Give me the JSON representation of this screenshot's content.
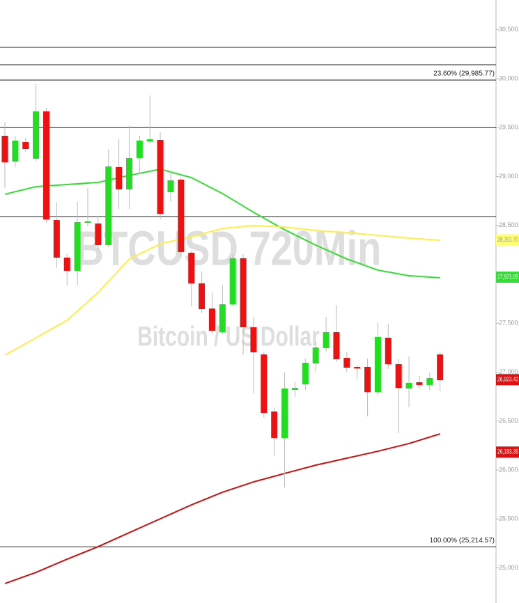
{
  "chart_data": {
    "type": "candlestick",
    "title": "BTCUSD,720Min",
    "subtitle": "Bitcoin / US Dollar",
    "xlim": [
      -0.47,
      47.4
    ],
    "ylim": [
      24641,
      30804
    ],
    "yticks": [
      {
        "value": 30500,
        "label": "30,500.00"
      },
      {
        "value": 30000,
        "label": "30,000.00"
      },
      {
        "value": 29500,
        "label": "29,500.00"
      },
      {
        "value": 29000,
        "label": "29,000.00"
      },
      {
        "value": 28500,
        "label": "28,500.00"
      },
      {
        "value": 28000,
        "label": "28,000.00"
      },
      {
        "value": 27500,
        "label": "27,500.00"
      },
      {
        "value": 27000,
        "label": "27,000.00"
      },
      {
        "value": 26500,
        "label": "26,500.00"
      },
      {
        "value": 26000,
        "label": "26,000.00"
      },
      {
        "value": 25500,
        "label": "25,500.00"
      },
      {
        "value": 25000,
        "label": "25,000.00"
      }
    ],
    "up_color": "#22dd22",
    "down_color": "#ee1111",
    "open": [
      29416,
      29153,
      29352,
      29182,
      29666,
      28555,
      28171,
      28036,
      28527,
      28520,
      28299,
      29096,
      28868,
      29189,
      29359,
      29374,
      28840,
      28968,
      28221,
      27908,
      27651,
      27409,
      27694,
      28164,
      27459,
      27182,
      26598,
      26328,
      26819,
      26876,
      27089,
      27246,
      27409,
      27146,
      27054,
      27054,
      26797,
      27352,
      27082,
      26833,
      26897,
      26869,
      27182
    ],
    "high": [
      29559,
      29416,
      29395,
      29950,
      29701,
      28740,
      28207,
      28740,
      28883,
      28598,
      29274,
      29381,
      29523,
      29416,
      29829,
      29452,
      29061,
      28989,
      28242,
      28029,
      27815,
      27886,
      28207,
      28207,
      27566,
      27210,
      26641,
      26997,
      26904,
      27139,
      27317,
      27566,
      27687,
      27210,
      27068,
      27139,
      27509,
      27495,
      27139,
      27160,
      26961,
      26997,
      27210
    ],
    "low": [
      28883,
      29096,
      29253,
      29153,
      28527,
      28064,
      27886,
      27886,
      28491,
      28242,
      28278,
      28669,
      28669,
      29025,
      29345,
      28562,
      28740,
      28171,
      27673,
      27602,
      27388,
      27388,
      27673,
      27175,
      26783,
      26534,
      26143,
      25822,
      26748,
      26819,
      26997,
      27210,
      27103,
      26997,
      26925,
      26548,
      26762,
      27032,
      26377,
      26641,
      26833,
      26819,
      26804
    ],
    "close": [
      29146,
      29367,
      29281,
      29666,
      28562,
      28171,
      28036,
      28534,
      28541,
      28299,
      29103,
      28868,
      29189,
      29367,
      29381,
      28619,
      28961,
      28228,
      27908,
      27644,
      27424,
      27694,
      28164,
      27459,
      27203,
      26584,
      26328,
      26833,
      26840,
      27096,
      27253,
      27409,
      27132,
      27046,
      27039,
      26797,
      27360,
      27082,
      26840,
      26890,
      26869,
      26940,
      26918
    ],
    "series": [
      {
        "color": "#33dd33",
        "x": [
          0,
          3,
          6,
          9,
          12,
          15,
          18,
          21,
          24,
          27,
          30,
          33,
          36,
          39,
          42
        ],
        "values": [
          28819,
          28897,
          28918,
          28940,
          29011,
          29075,
          28989,
          28826,
          28634,
          28456,
          28299,
          28157,
          28043,
          27986,
          27965
        ]
      },
      {
        "color": "#ffee44",
        "x": [
          0,
          3,
          6,
          9,
          12,
          15,
          18,
          21,
          24,
          27,
          30,
          33,
          36,
          39,
          42
        ],
        "values": [
          27175,
          27352,
          27530,
          27815,
          28157,
          28313,
          28384,
          28470,
          28498,
          28484,
          28448,
          28427,
          28399,
          28370,
          28349
        ]
      },
      {
        "color": "#cc1111",
        "x": [
          0,
          3,
          6,
          9,
          12,
          15,
          18,
          21,
          24,
          27,
          30,
          33,
          36,
          39,
          42
        ],
        "values": [
          24840,
          24954,
          25089,
          25217,
          25360,
          25502,
          25644,
          25773,
          25879,
          25965,
          26050,
          26121,
          26192,
          26271,
          26370
        ]
      }
    ],
    "levels": [
      30320,
      30142,
      29500,
      28591
    ],
    "fib_levels": [
      {
        "value": 29985.77,
        "label": "23.60% (29,985.77)"
      },
      {
        "value": 25214.57,
        "label": "100.00% (25,214.57)"
      }
    ],
    "price_labels": [
      {
        "value": 28351.7,
        "label": "28,351.70",
        "color": "#ffff66"
      },
      {
        "value": 27971.05,
        "label": "27,971.05",
        "color": "#33dd33"
      },
      {
        "value": 26923.42,
        "label": "26,923.42",
        "color": "#dd1111"
      },
      {
        "value": 26183.35,
        "label": "26,183.35",
        "color": "#dd1111"
      }
    ]
  }
}
